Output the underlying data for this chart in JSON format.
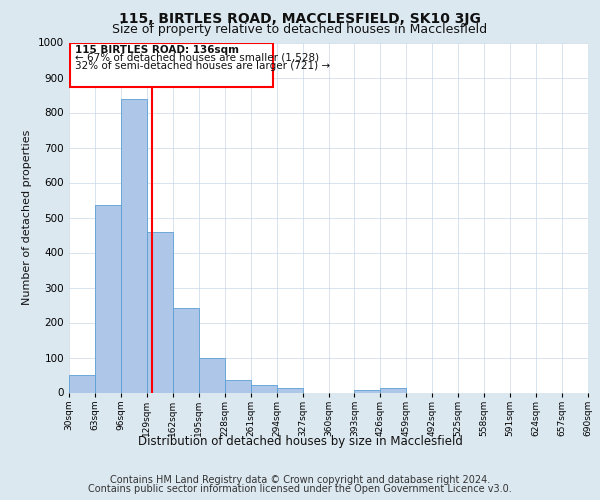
{
  "title1": "115, BIRTLES ROAD, MACCLESFIELD, SK10 3JG",
  "title2": "Size of property relative to detached houses in Macclesfield",
  "xlabel": "Distribution of detached houses by size in Macclesfield",
  "ylabel": "Number of detached properties",
  "footer1": "Contains HM Land Registry data © Crown copyright and database right 2024.",
  "footer2": "Contains public sector information licensed under the Open Government Licence v3.0.",
  "annotation_line1": "115 BIRTLES ROAD: 136sqm",
  "annotation_line2": "← 67% of detached houses are smaller (1,528)",
  "annotation_line3": "32% of semi-detached houses are larger (721) →",
  "bar_edges": [
    30,
    63,
    96,
    129,
    162,
    195,
    228,
    261,
    294,
    327,
    360,
    393,
    426,
    459,
    492,
    525,
    558,
    591,
    624,
    657,
    690
  ],
  "bar_heights": [
    50,
    535,
    838,
    460,
    242,
    98,
    35,
    22,
    12,
    0,
    0,
    8,
    12,
    0,
    0,
    0,
    0,
    0,
    0,
    0
  ],
  "bar_color": "#aec6e8",
  "bar_edge_color": "#5a9fd4",
  "red_line_x": 136,
  "ylim": [
    0,
    1000
  ],
  "yticks": [
    0,
    100,
    200,
    300,
    400,
    500,
    600,
    700,
    800,
    900,
    1000
  ],
  "bg_color": "#dce8f0",
  "plot_bg_color": "#ffffff",
  "title1_fontsize": 10,
  "title2_fontsize": 9,
  "xlabel_fontsize": 8.5,
  "ylabel_fontsize": 8,
  "footer_fontsize": 7,
  "annot_fontsize": 7.5
}
